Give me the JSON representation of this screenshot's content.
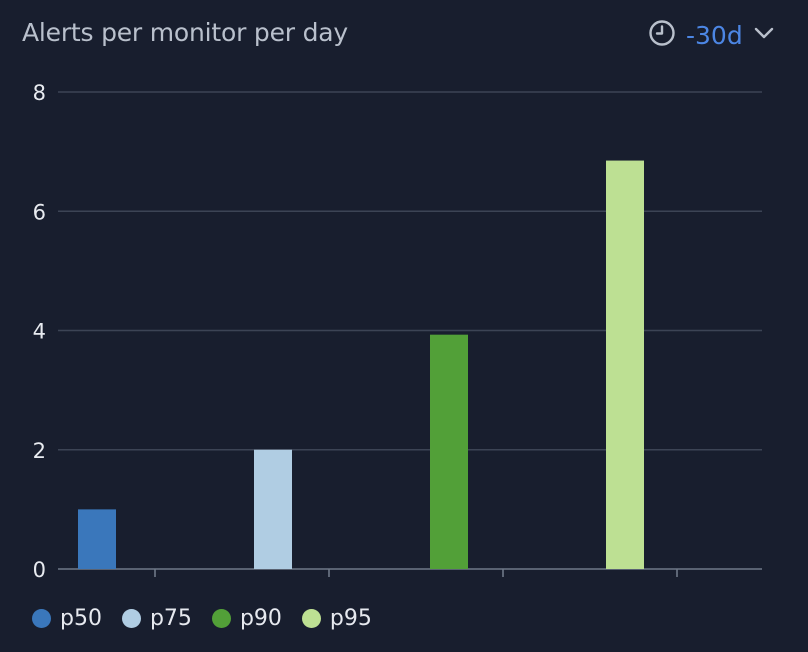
{
  "header": {
    "title": "Alerts per monitor per day",
    "range_label": "-30d",
    "range_icon": "clock-icon",
    "dropdown_icon": "chevron-down-icon",
    "accent_color": "#4c86e4"
  },
  "chart_data": {
    "type": "bar",
    "title": "Alerts per monitor per day",
    "xlabel": "",
    "ylabel": "",
    "ylim": [
      0,
      8
    ],
    "yticks": [
      "0",
      "2",
      "4",
      "6",
      "8"
    ],
    "grid": true,
    "legend_position": "bottom-left",
    "series": [
      {
        "name": "p50",
        "value": 1.0,
        "color": "#3a77bb"
      },
      {
        "name": "p75",
        "value": 2.0,
        "color": "#b0cde3"
      },
      {
        "name": "p90",
        "value": 3.93,
        "color": "#52a038"
      },
      {
        "name": "p95",
        "value": 6.85,
        "color": "#bde093"
      }
    ]
  }
}
